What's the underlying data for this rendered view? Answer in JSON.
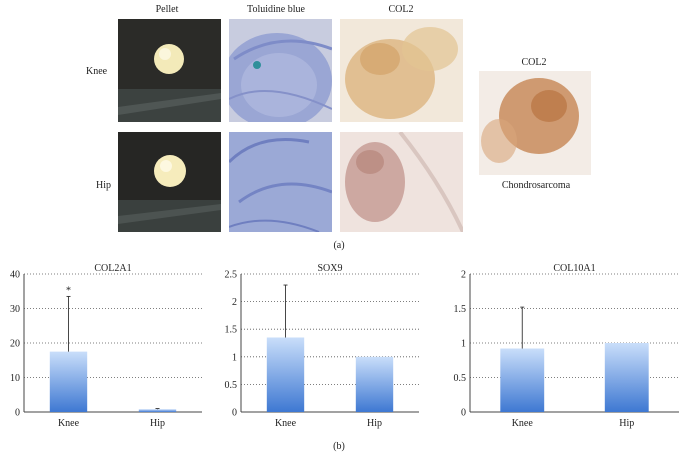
{
  "panel_a": {
    "col_headers": [
      "Pellet",
      "Toluidine blue",
      "COL2",
      "COL2"
    ],
    "row_labels": [
      "Knee",
      "Hip"
    ],
    "side_caption": "Chondrosarcoma",
    "letter": "(a)"
  },
  "panel_b": {
    "letter": "(b)"
  },
  "colors": {
    "bar_top": "#c9defa",
    "bar_bottom": "#3e78d2",
    "pellet_bg": "#262624",
    "pellet": "#f4ecc0",
    "toluidine": "#8f9fd2",
    "col2_stain": "#d7b07e",
    "col2_hip": "#c79e96",
    "chondro": "#c88c5c"
  },
  "chart_data": [
    {
      "type": "bar",
      "title": "COL2A1",
      "categories": [
        "Knee",
        "Hip"
      ],
      "values": [
        17.5,
        0.8
      ],
      "error": [
        16.0,
        0.2
      ],
      "ylim": [
        0,
        40
      ],
      "yticks": [
        0,
        10,
        20,
        30,
        40
      ],
      "yticklabels": [
        "0",
        "10",
        "20",
        "30",
        "40"
      ],
      "grid": "dotted-horizontal",
      "annotations": [
        {
          "text": "*",
          "category": "Knee"
        }
      ]
    },
    {
      "type": "bar",
      "title": "SOX9",
      "categories": [
        "Knee",
        "Hip"
      ],
      "values": [
        1.35,
        1.0
      ],
      "error": [
        0.95,
        0.0
      ],
      "ylim": [
        0,
        2.5
      ],
      "yticks": [
        0,
        0.5,
        1,
        1.5,
        2,
        2.5
      ],
      "yticklabels": [
        "0",
        "0.5",
        "1",
        "1.5",
        "2",
        "2.5"
      ],
      "grid": "dotted-horizontal"
    },
    {
      "type": "bar",
      "title": "COL10A1",
      "categories": [
        "Knee",
        "Hip"
      ],
      "values": [
        0.92,
        1.0
      ],
      "error": [
        0.6,
        0.0
      ],
      "ylim": [
        0,
        2
      ],
      "yticks": [
        0,
        0.5,
        1,
        1.5,
        2
      ],
      "yticklabels": [
        "0",
        "0.5",
        "1",
        "1.5",
        "2"
      ],
      "grid": "dotted-horizontal"
    }
  ]
}
